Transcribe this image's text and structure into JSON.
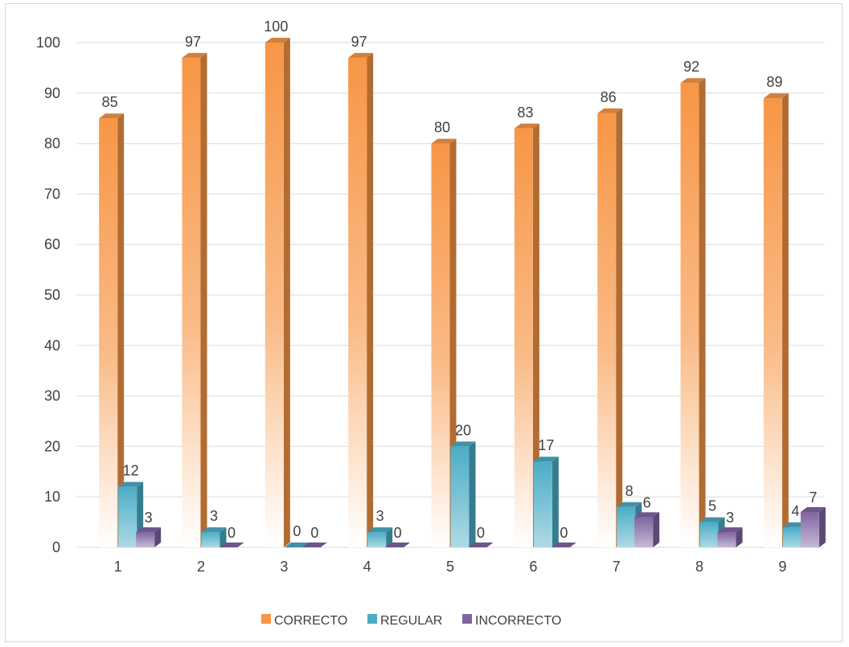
{
  "chart_data": {
    "type": "bar",
    "title": "",
    "xlabel": "",
    "ylabel": "",
    "categories": [
      "1",
      "2",
      "3",
      "4",
      "5",
      "6",
      "7",
      "8",
      "9"
    ],
    "series": [
      {
        "name": "CORRECTO",
        "color": "#F79646",
        "values": [
          85,
          97,
          100,
          97,
          80,
          83,
          86,
          92,
          89
        ]
      },
      {
        "name": "REGULAR",
        "color": "#4BACC6",
        "values": [
          12,
          3,
          0,
          3,
          20,
          17,
          8,
          5,
          4
        ]
      },
      {
        "name": "INCORRECTO",
        "color": "#8064A2",
        "values": [
          3,
          0,
          0,
          0,
          0,
          0,
          6,
          3,
          7
        ]
      }
    ],
    "ylim": [
      0,
      100
    ],
    "yticks": [
      0,
      10,
      20,
      30,
      40,
      50,
      60,
      70,
      80,
      90,
      100
    ],
    "grid": true,
    "legend_position": "bottom",
    "style": "3d-column"
  }
}
